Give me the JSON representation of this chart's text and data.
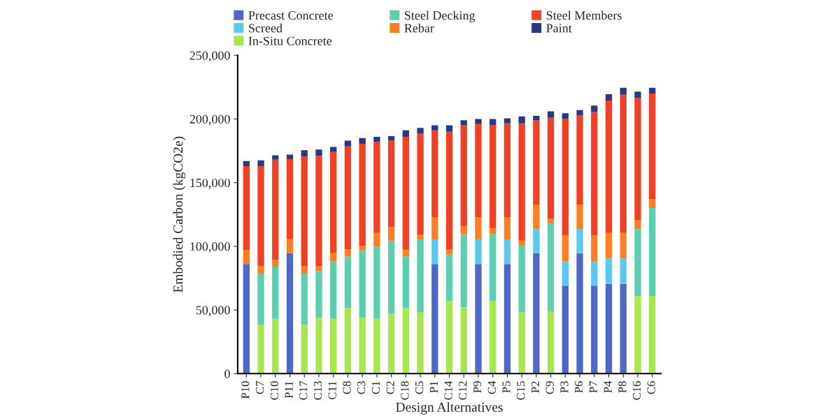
{
  "chart_data": {
    "type": "bar",
    "stacked": true,
    "xlabel": "Design Alternatives",
    "ylabel": "Embodied Carbon (kgCO2e)",
    "categories": [
      "P10",
      "C7",
      "C10",
      "P11",
      "C17",
      "C13",
      "C11",
      "C8",
      "C3",
      "C1",
      "C2",
      "C18",
      "C5",
      "P1",
      "C14",
      "C12",
      "P9",
      "C4",
      "P5",
      "C15",
      "P2",
      "C9",
      "P3",
      "P6",
      "P7",
      "P4",
      "P8",
      "C16",
      "C6"
    ],
    "ylim": [
      0,
      250000
    ],
    "yticks": [
      {
        "value": 0,
        "label": "0"
      },
      {
        "value": 50000,
        "label": "50,000"
      },
      {
        "value": 100000,
        "label": "100,000"
      },
      {
        "value": 150000,
        "label": "150,000"
      },
      {
        "value": 200000,
        "label": "200,000"
      },
      {
        "value": 250000,
        "label": "250,000"
      }
    ],
    "grid": false,
    "legend": "top",
    "series": [
      {
        "name": "Precast Concrete",
        "color": "#4f67c6",
        "values": [
          86000,
          null,
          null,
          94500,
          null,
          null,
          null,
          null,
          null,
          null,
          null,
          null,
          null,
          86000,
          null,
          null,
          86000,
          null,
          86000,
          null,
          94500,
          null,
          69000,
          94500,
          69000,
          70500,
          70500,
          null,
          null
        ]
      },
      {
        "name": "Screed",
        "color": "#5bc8ef",
        "values": [
          null,
          null,
          null,
          null,
          null,
          null,
          null,
          null,
          null,
          null,
          null,
          null,
          null,
          19000,
          null,
          null,
          19000,
          null,
          19000,
          null,
          19000,
          null,
          19000,
          19000,
          19000,
          20000,
          20000,
          null,
          null
        ]
      },
      {
        "name": "In-Situ Concrete",
        "color": "#a8e650",
        "values": [
          null,
          38500,
          43000,
          null,
          38500,
          44000,
          43000,
          51500,
          44000,
          43000,
          47000,
          51500,
          48000,
          null,
          57000,
          52000,
          null,
          57000,
          null,
          48000,
          null,
          48500,
          null,
          null,
          null,
          null,
          null,
          61000,
          61000
        ]
      },
      {
        "name": "Steel Decking",
        "color": "#5ccfb0",
        "values": [
          null,
          40000,
          41000,
          null,
          40000,
          36500,
          45000,
          40500,
          52500,
          56500,
          57000,
          40500,
          57000,
          null,
          36500,
          57000,
          null,
          52500,
          null,
          52500,
          null,
          69500,
          null,
          null,
          null,
          null,
          null,
          52500,
          69000
        ]
      },
      {
        "name": "Rebar",
        "color": "#fd7f23",
        "values": [
          11000,
          6000,
          5500,
          11500,
          6000,
          4000,
          7000,
          5500,
          4000,
          11000,
          11000,
          5500,
          4000,
          18000,
          4000,
          7000,
          18000,
          4500,
          18000,
          4000,
          19000,
          3500,
          20500,
          19000,
          20500,
          20000,
          20000,
          7000,
          7000
        ]
      },
      {
        "name": "Steel Members",
        "color": "#ef4125",
        "values": [
          66000,
          78500,
          78500,
          62500,
          86000,
          86500,
          79000,
          81000,
          80000,
          71500,
          68000,
          88500,
          79500,
          68000,
          92500,
          79000,
          73000,
          81000,
          73500,
          92000,
          66500,
          79500,
          91500,
          70500,
          97000,
          104000,
          108500,
          96000,
          83000
        ]
      },
      {
        "name": "Paint",
        "color": "#253a80",
        "values": [
          4000,
          4500,
          3500,
          3500,
          5000,
          5000,
          4000,
          4500,
          4500,
          4000,
          3500,
          5000,
          4500,
          4000,
          5000,
          4000,
          4000,
          5000,
          4000,
          5500,
          3500,
          5000,
          4500,
          4000,
          5000,
          5000,
          5500,
          5000,
          4500
        ]
      }
    ]
  }
}
